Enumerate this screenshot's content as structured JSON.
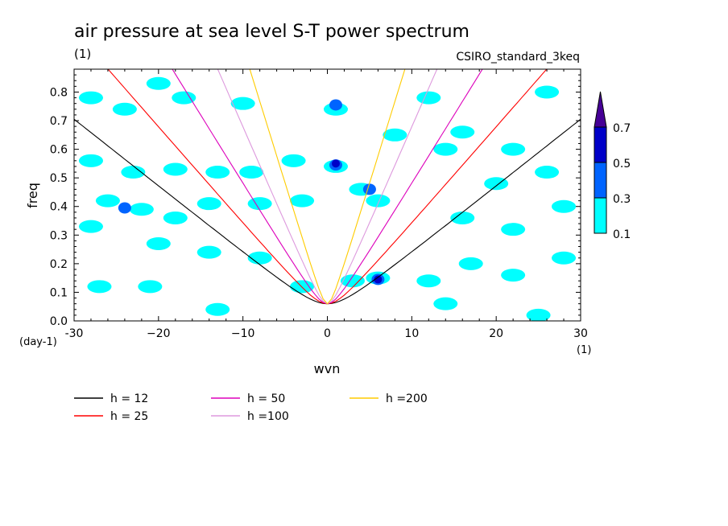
{
  "chart_data": {
    "type": "heatmap",
    "title": "air pressure at sea level S-T power spectrum",
    "subtitle": "(1)",
    "source_label": "CSIRO_standard_3keq",
    "xlabel": "wvn",
    "ylabel": "freq",
    "x_unit": "(1)",
    "y_unit": "(day-1)",
    "xlim": [
      -30,
      30
    ],
    "ylim": [
      0,
      0.88
    ],
    "x_ticks": [
      -30,
      -20,
      -10,
      0,
      10,
      20,
      30
    ],
    "x_tick_labels": [
      "-30",
      "−20",
      "−10",
      "0",
      "10",
      "20",
      "30"
    ],
    "y_ticks": [
      0.0,
      0.1,
      0.2,
      0.3,
      0.4,
      0.5,
      0.6,
      0.7,
      0.8
    ],
    "y_tick_labels": [
      "0.0",
      "0.1",
      "0.2",
      "0.3",
      "0.4",
      "0.5",
      "0.6",
      "0.7",
      "0.8"
    ],
    "grid": false,
    "colorbar": {
      "levels": [
        0.1,
        0.3,
        0.5,
        0.7
      ],
      "labels": [
        "0.1",
        "0.3",
        "0.5",
        "0.7"
      ],
      "colors": [
        "#00ffff",
        "#0064ff",
        "#0000c8",
        "#460096"
      ]
    },
    "dispersion_curves": [
      {
        "name": "h = 12",
        "h": 12,
        "color": "#000000"
      },
      {
        "name": "h = 25",
        "h": 25,
        "color": "#ff0000"
      },
      {
        "name": "h = 50",
        "h": 50,
        "color": "#dd00bb"
      },
      {
        "name": "h =100",
        "h": 100,
        "color": "#dd99dd"
      },
      {
        "name": "h =200",
        "h": 200,
        "color": "#ffcc00"
      }
    ],
    "blobs": [
      {
        "x": -28,
        "y": 0.78,
        "level": 0.1
      },
      {
        "x": -24,
        "y": 0.74,
        "level": 0.1
      },
      {
        "x": -20,
        "y": 0.83,
        "level": 0.1
      },
      {
        "x": -17,
        "y": 0.78,
        "level": 0.1
      },
      {
        "x": -10,
        "y": 0.76,
        "level": 0.1
      },
      {
        "x": -28,
        "y": 0.56,
        "level": 0.1
      },
      {
        "x": -23,
        "y": 0.52,
        "level": 0.1
      },
      {
        "x": -18,
        "y": 0.53,
        "level": 0.1
      },
      {
        "x": -13,
        "y": 0.52,
        "level": 0.1
      },
      {
        "x": -9,
        "y": 0.52,
        "level": 0.1
      },
      {
        "x": -4,
        "y": 0.56,
        "level": 0.1
      },
      {
        "x": -26,
        "y": 0.42,
        "level": 0.1
      },
      {
        "x": -22,
        "y": 0.39,
        "level": 0.1
      },
      {
        "x": -18,
        "y": 0.36,
        "level": 0.1
      },
      {
        "x": -14,
        "y": 0.41,
        "level": 0.1
      },
      {
        "x": -8,
        "y": 0.41,
        "level": 0.1
      },
      {
        "x": -3,
        "y": 0.42,
        "level": 0.1
      },
      {
        "x": -28,
        "y": 0.33,
        "level": 0.1
      },
      {
        "x": -20,
        "y": 0.27,
        "level": 0.1
      },
      {
        "x": -14,
        "y": 0.24,
        "level": 0.1
      },
      {
        "x": -8,
        "y": 0.22,
        "level": 0.1
      },
      {
        "x": -27,
        "y": 0.12,
        "level": 0.1
      },
      {
        "x": -21,
        "y": 0.12,
        "level": 0.1
      },
      {
        "x": -13,
        "y": 0.04,
        "level": 0.1
      },
      {
        "x": -3,
        "y": 0.12,
        "level": 0.1
      },
      {
        "x": 1,
        "y": 0.74,
        "level": 0.1
      },
      {
        "x": 1,
        "y": 0.54,
        "level": 0.1
      },
      {
        "x": 4,
        "y": 0.46,
        "level": 0.1
      },
      {
        "x": 6,
        "y": 0.42,
        "level": 0.1
      },
      {
        "x": 6,
        "y": 0.15,
        "level": 0.1
      },
      {
        "x": 3,
        "y": 0.14,
        "level": 0.1
      },
      {
        "x": 8,
        "y": 0.65,
        "level": 0.1
      },
      {
        "x": 12,
        "y": 0.78,
        "level": 0.1
      },
      {
        "x": 14,
        "y": 0.6,
        "level": 0.1
      },
      {
        "x": 16,
        "y": 0.66,
        "level": 0.1
      },
      {
        "x": 22,
        "y": 0.6,
        "level": 0.1
      },
      {
        "x": 26,
        "y": 0.8,
        "level": 0.1
      },
      {
        "x": 20,
        "y": 0.48,
        "level": 0.1
      },
      {
        "x": 26,
        "y": 0.52,
        "level": 0.1
      },
      {
        "x": 16,
        "y": 0.36,
        "level": 0.1
      },
      {
        "x": 22,
        "y": 0.32,
        "level": 0.1
      },
      {
        "x": 28,
        "y": 0.4,
        "level": 0.1
      },
      {
        "x": 12,
        "y": 0.14,
        "level": 0.1
      },
      {
        "x": 17,
        "y": 0.2,
        "level": 0.1
      },
      {
        "x": 22,
        "y": 0.16,
        "level": 0.1
      },
      {
        "x": 28,
        "y": 0.22,
        "level": 0.1
      },
      {
        "x": 14,
        "y": 0.06,
        "level": 0.1
      },
      {
        "x": 25,
        "y": 0.02,
        "level": 0.1
      },
      {
        "x": 1,
        "y": 0.755,
        "level": 0.3
      },
      {
        "x": 1,
        "y": 0.545,
        "level": 0.3
      },
      {
        "x": 5,
        "y": 0.46,
        "level": 0.3
      },
      {
        "x": 6,
        "y": 0.145,
        "level": 0.3
      },
      {
        "x": -24,
        "y": 0.395,
        "level": 0.3
      },
      {
        "x": 1,
        "y": 0.55,
        "level": 0.5
      },
      {
        "x": 6,
        "y": 0.145,
        "level": 0.5
      }
    ]
  }
}
